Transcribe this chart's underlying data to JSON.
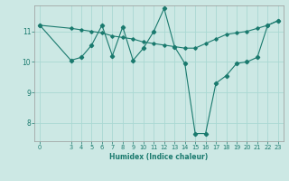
{
  "xlabel": "Humidex (Indice chaleur)",
  "ylabel": "",
  "bg_color": "#cce8e4",
  "line_color": "#1a7a6e",
  "grid_color": "#aad8d3",
  "xlim": [
    -0.5,
    23.5
  ],
  "ylim": [
    7.4,
    11.85
  ],
  "yticks": [
    8,
    9,
    10,
    11
  ],
  "xticks": [
    0,
    3,
    4,
    5,
    6,
    7,
    8,
    9,
    10,
    11,
    12,
    13,
    14,
    15,
    16,
    17,
    18,
    19,
    20,
    21,
    22,
    23
  ],
  "line1_x": [
    0,
    3,
    4,
    5,
    6,
    7,
    8,
    9,
    10,
    11,
    12,
    13,
    14,
    15,
    16,
    17,
    18,
    19,
    20,
    21,
    22,
    23
  ],
  "line1_y": [
    11.2,
    10.05,
    10.15,
    10.55,
    11.2,
    10.2,
    11.15,
    10.05,
    10.45,
    11.0,
    11.75,
    10.5,
    9.95,
    7.65,
    7.65,
    9.3,
    9.55,
    9.95,
    10.0,
    10.15,
    11.2,
    11.35
  ],
  "line2_x": [
    0,
    3,
    4,
    5,
    6,
    7,
    8,
    9,
    10,
    11,
    12,
    13,
    14,
    15,
    16,
    17,
    18,
    19,
    20,
    21,
    22,
    23
  ],
  "line2_y": [
    11.2,
    11.1,
    11.05,
    11.0,
    10.95,
    10.85,
    10.8,
    10.75,
    10.65,
    10.6,
    10.55,
    10.5,
    10.45,
    10.45,
    10.6,
    10.75,
    10.9,
    10.95,
    11.0,
    11.1,
    11.2,
    11.35
  ]
}
